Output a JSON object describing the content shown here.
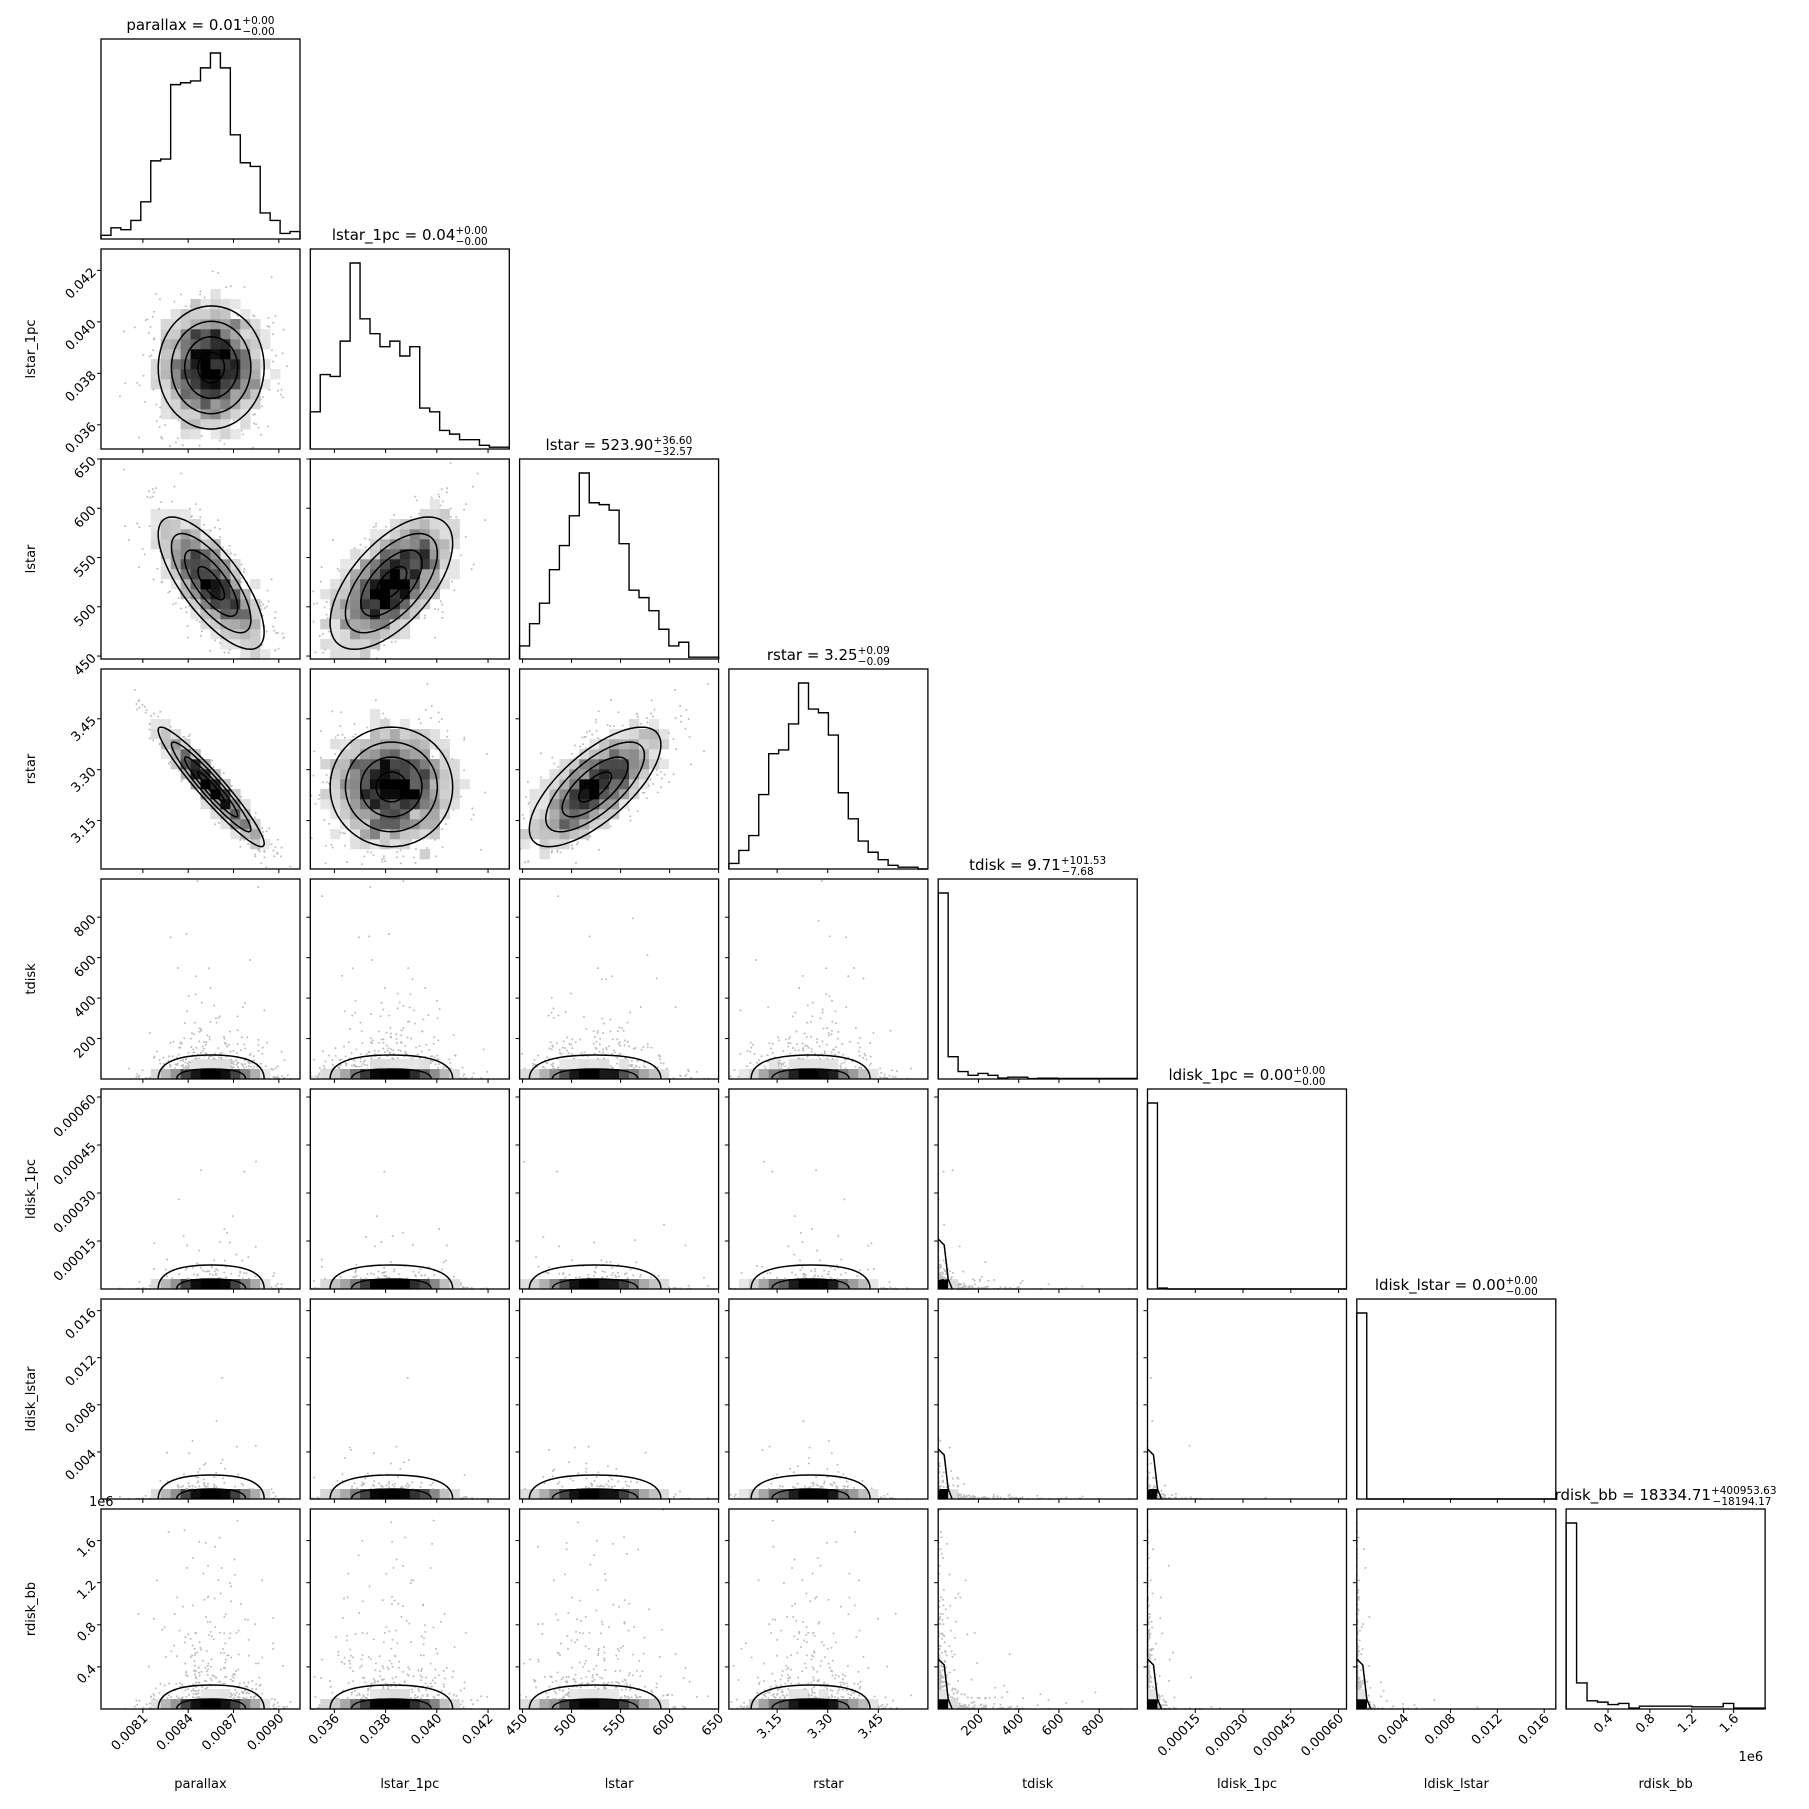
{
  "chart_data": {
    "type": "corner",
    "grid": false,
    "colors": {
      "line": "#000000",
      "density_max": "#000000",
      "points": "#bdbdbd"
    },
    "parameters": [
      {
        "name": "parallax",
        "label": "parallax",
        "title": {
          "text": "parallax = 0.01",
          "plus": "+0.00",
          "minus": "−0.00"
        },
        "range": [
          0.007823,
          0.00914
        ],
        "ticks": [
          0.0081,
          0.0084,
          0.0087,
          0.009
        ],
        "tick_labels": [
          "0.0081",
          "0.0084",
          "0.0087",
          "0.0090"
        ],
        "histogram": [
          0.02,
          0.06,
          0.05,
          0.1,
          0.2,
          0.42,
          0.43,
          0.83,
          0.84,
          0.85,
          0.92,
          1.0,
          0.92,
          0.56,
          0.41,
          0.39,
          0.14,
          0.1,
          0.03,
          0.04
        ]
      },
      {
        "name": "lstar_1pc",
        "label": "lstar_1pc",
        "title": {
          "text": "lstar_1pc = 0.04",
          "plus": "+0.00",
          "minus": "−0.00"
        },
        "range": [
          0.03506,
          0.04283
        ],
        "ticks": [
          0.036,
          0.038,
          0.04,
          0.042
        ],
        "tick_labels": [
          "0.036",
          "0.038",
          "0.040",
          "0.042"
        ],
        "histogram": [
          0.2,
          0.4,
          0.39,
          0.58,
          1.0,
          0.7,
          0.62,
          0.55,
          0.58,
          0.5,
          0.55,
          0.22,
          0.2,
          0.1,
          0.08,
          0.05,
          0.05,
          0.02,
          0.01,
          0.01
        ]
      },
      {
        "name": "lstar",
        "label": "lstar",
        "title": {
          "text": "lstar = 523.90",
          "plus": "+36.60",
          "minus": "−32.57"
        },
        "range": [
          447,
          650
        ],
        "ticks": [
          450,
          500,
          550,
          600,
          650
        ],
        "tick_labels": [
          "450",
          "500",
          "550",
          "600",
          "650"
        ],
        "histogram": [
          0.07,
          0.19,
          0.3,
          0.48,
          0.61,
          0.77,
          1.0,
          0.84,
          0.83,
          0.8,
          0.62,
          0.37,
          0.33,
          0.26,
          0.16,
          0.07,
          0.09,
          0.01,
          0.01,
          0.01
        ]
      },
      {
        "name": "rstar",
        "label": "rstar",
        "title": {
          "text": "rstar = 3.25",
          "plus": "+0.09",
          "minus": "−0.09"
        },
        "range": [
          3.007,
          3.597
        ],
        "ticks": [
          3.15,
          3.3,
          3.45
        ],
        "tick_labels": [
          "3.15",
          "3.30",
          "3.45"
        ],
        "histogram": [
          0.03,
          0.1,
          0.18,
          0.4,
          0.62,
          0.64,
          0.78,
          1.0,
          0.86,
          0.84,
          0.72,
          0.41,
          0.27,
          0.15,
          0.09,
          0.05,
          0.02,
          0.01,
          0.01,
          0.0
        ]
      },
      {
        "name": "tdisk",
        "label": "tdisk",
        "title": {
          "text": "tdisk = 9.71",
          "plus": "+101.53",
          "minus": "−7.68"
        },
        "range": [
          0,
          989
        ],
        "ticks": [
          200,
          400,
          600,
          800
        ],
        "tick_labels": [
          "200",
          "400",
          "600",
          "800"
        ],
        "histogram": [
          1.0,
          0.12,
          0.04,
          0.02,
          0.03,
          0.02,
          0.005,
          0.01,
          0.01,
          0.002,
          0.004,
          0.004,
          0.003,
          0.003,
          0.003,
          0.003,
          0.003,
          0.003,
          0.003,
          0.003
        ]
      },
      {
        "name": "ldisk_1pc",
        "label": "ldisk_1pc",
        "title": {
          "text": "ldisk_1pc = 0.00",
          "plus": "+0.00",
          "minus": "−0.00"
        },
        "range": [
          0,
          0.000625
        ],
        "ticks": [
          0.00015,
          0.0003,
          0.00045,
          0.0006
        ],
        "tick_labels": [
          "0.00015",
          "0.00030",
          "0.00045",
          "0.00060"
        ],
        "histogram": [
          1.0,
          0.005,
          0,
          0,
          0,
          0,
          0,
          0,
          0,
          0,
          0,
          0,
          0,
          0,
          0,
          0,
          0,
          0,
          0,
          0
        ]
      },
      {
        "name": "ldisk_lstar",
        "label": "ldisk_lstar",
        "title": {
          "text": "ldisk_lstar = 0.00",
          "plus": "+0.00",
          "minus": "−0.00"
        },
        "range": [
          0,
          0.01699
        ],
        "ticks": [
          0.004,
          0.008,
          0.012,
          0.016
        ],
        "tick_labels": [
          "0.004",
          "0.008",
          "0.012",
          "0.016"
        ],
        "histogram": [
          1.0,
          0,
          0,
          0,
          0,
          0,
          0,
          0,
          0,
          0,
          0,
          0,
          0,
          0,
          0,
          0,
          0,
          0,
          0,
          0
        ]
      },
      {
        "name": "rdisk_bb",
        "label": "rdisk_bb",
        "title": {
          "text": "rdisk_bb = 18334.71",
          "plus": "+400953.63",
          "minus": "−18194.17"
        },
        "range": [
          0,
          1900000
        ],
        "ticks": [
          400000,
          800000,
          1200000,
          1600000
        ],
        "tick_labels": [
          "0.4",
          "0.8",
          "1.2",
          "1.6"
        ],
        "offset_label": "1e6",
        "histogram": [
          1.0,
          0.14,
          0.044,
          0.037,
          0.024,
          0.03,
          0.005,
          0.015,
          0.015,
          0.015,
          0.015,
          0.015,
          0.012,
          0.012,
          0.012,
          0.03,
          0.005,
          0.005,
          0.005
        ]
      }
    ]
  }
}
